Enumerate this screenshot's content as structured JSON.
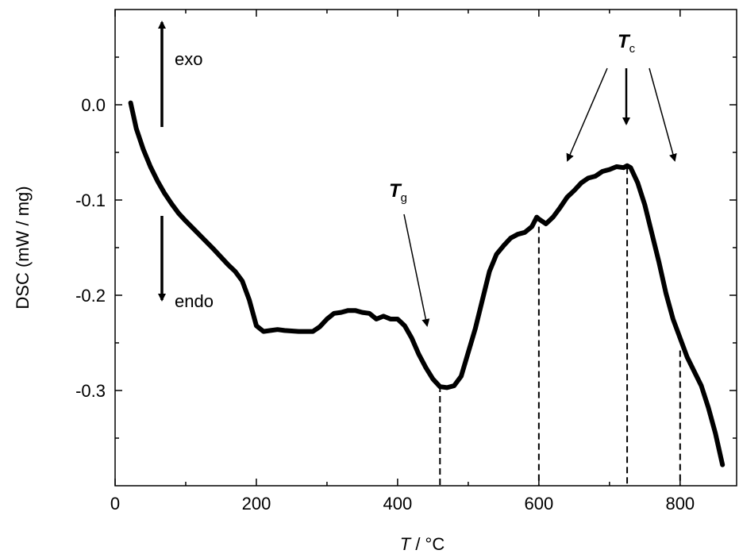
{
  "chart_data": {
    "type": "line",
    "xlabel_var": "T",
    "xlabel_unit": " / °C",
    "ylabel_var": "DSC",
    "ylabel_unit": " (mW / mg)",
    "xlim": [
      0,
      880
    ],
    "ylim": [
      -0.4,
      0.1
    ],
    "xticks": [
      0,
      200,
      400,
      600,
      800
    ],
    "xtick_labels": [
      "0",
      "200",
      "400",
      "600",
      "800"
    ],
    "yticks": [
      0.0,
      -0.1,
      -0.2,
      -0.3
    ],
    "ytick_labels": [
      "0.0",
      "-0.1",
      "-0.2",
      "-0.3"
    ],
    "grid": false,
    "series": [
      {
        "color": "#000000",
        "x": [
          22,
          30,
          40,
          50,
          60,
          70,
          80,
          90,
          100,
          120,
          140,
          160,
          170,
          180,
          190,
          200,
          210,
          220,
          230,
          240,
          260,
          280,
          290,
          300,
          310,
          320,
          330,
          340,
          350,
          360,
          370,
          380,
          390,
          400,
          410,
          420,
          430,
          440,
          450,
          460,
          470,
          480,
          490,
          500,
          510,
          520,
          530,
          540,
          550,
          560,
          570,
          580,
          590,
          597,
          600,
          610,
          620,
          630,
          640,
          650,
          660,
          670,
          680,
          690,
          700,
          710,
          720,
          725,
          730,
          740,
          750,
          760,
          770,
          780,
          790,
          800,
          810,
          820,
          830,
          840,
          850,
          860
        ],
        "y": [
          0.002,
          -0.025,
          -0.047,
          -0.065,
          -0.08,
          -0.093,
          -0.104,
          -0.114,
          -0.122,
          -0.137,
          -0.152,
          -0.168,
          -0.175,
          -0.185,
          -0.205,
          -0.232,
          -0.238,
          -0.237,
          -0.236,
          -0.237,
          -0.238,
          -0.238,
          -0.233,
          -0.225,
          -0.219,
          -0.218,
          -0.216,
          -0.216,
          -0.218,
          -0.219,
          -0.225,
          -0.222,
          -0.225,
          -0.225,
          -0.232,
          -0.245,
          -0.262,
          -0.276,
          -0.288,
          -0.296,
          -0.297,
          -0.295,
          -0.285,
          -0.26,
          -0.235,
          -0.205,
          -0.175,
          -0.157,
          -0.148,
          -0.14,
          -0.136,
          -0.134,
          -0.128,
          -0.118,
          -0.12,
          -0.125,
          -0.118,
          -0.108,
          -0.097,
          -0.09,
          -0.082,
          -0.077,
          -0.075,
          -0.07,
          -0.068,
          -0.065,
          -0.066,
          -0.064,
          -0.066,
          -0.082,
          -0.105,
          -0.135,
          -0.165,
          -0.198,
          -0.225,
          -0.245,
          -0.265,
          -0.28,
          -0.295,
          -0.318,
          -0.345,
          -0.378
        ]
      }
    ],
    "dashed_markers": [
      {
        "x": 460,
        "y": -0.295
      },
      {
        "x": 600,
        "y": -0.128
      },
      {
        "x": 725,
        "y": -0.066
      },
      {
        "x": 800,
        "y": -0.258
      }
    ],
    "annotations": {
      "exo": "exo",
      "endo": "endo",
      "tg_main": "T",
      "tg_sub": "g",
      "tc_main": "T",
      "tc_sub": "c"
    }
  }
}
